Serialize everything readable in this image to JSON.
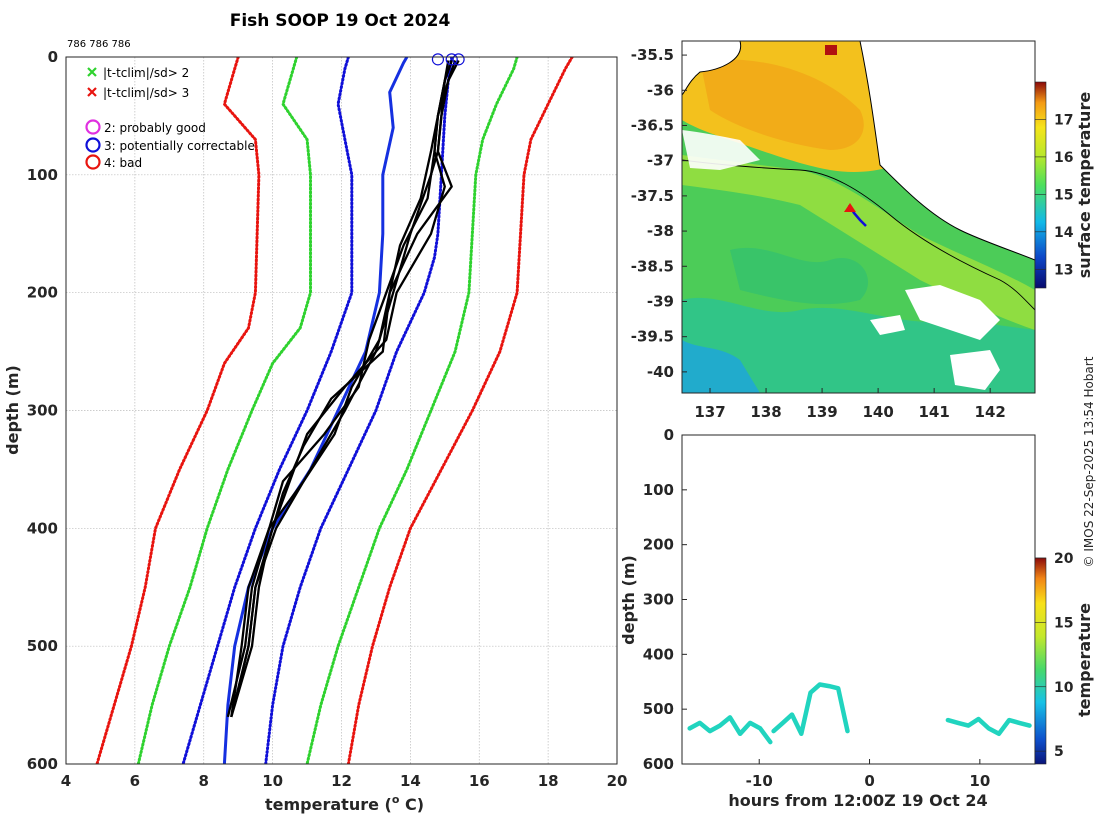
{
  "title": "Fish SOOP 19 Oct 2024",
  "cruise_ids": "786 786 786",
  "credit": "© IMOS 22-Sep-2025 13:54 Hobart",
  "legend": {
    "cross_green": "|t-tclim|/sd> 2",
    "cross_red": "|t-tclim|/sd> 3",
    "circle_magenta": "2: probably good",
    "circle_blue": "3: potentially correctable",
    "circle_red": "4: bad"
  },
  "colors": {
    "green": "#2fd22f",
    "red": "#e8140f",
    "blue": "#1010d8",
    "magenta": "#e030e0",
    "black": "#000000"
  },
  "chart_data": [
    {
      "type": "line",
      "name": "profile",
      "title": "Fish SOOP 19 Oct 2024",
      "xlabel": "temperature (o C)",
      "ylabel": "depth (m)",
      "xlim": [
        4,
        20
      ],
      "ylim": [
        0,
        600
      ],
      "y_reversed": true,
      "xticks": [
        4,
        6,
        8,
        10,
        12,
        14,
        16,
        18,
        20
      ],
      "yticks": [
        0,
        100,
        200,
        300,
        400,
        500,
        600
      ],
      "grid": true,
      "series": [
        {
          "name": "clim_minus3sd",
          "style": "red-dotted",
          "depth": [
            0,
            10,
            40,
            70,
            100,
            200,
            230,
            260,
            300,
            350,
            400,
            450,
            500,
            550,
            600
          ],
          "temp": [
            9.0,
            8.9,
            8.6,
            9.5,
            9.6,
            9.5,
            9.3,
            8.6,
            8.1,
            7.3,
            6.6,
            6.3,
            5.9,
            5.4,
            4.9
          ]
        },
        {
          "name": "clim_minus2sd",
          "style": "green-dotted",
          "depth": [
            0,
            10,
            40,
            70,
            100,
            200,
            230,
            260,
            300,
            350,
            400,
            450,
            500,
            550,
            600
          ],
          "temp": [
            10.7,
            10.6,
            10.3,
            11.0,
            11.1,
            11.1,
            10.8,
            10.0,
            9.4,
            8.7,
            8.1,
            7.6,
            7.0,
            6.5,
            6.1
          ]
        },
        {
          "name": "clim_minus1sd",
          "style": "blue-dotted",
          "depth": [
            0,
            10,
            40,
            70,
            100,
            200,
            250,
            300,
            350,
            400,
            450,
            500,
            550,
            600
          ],
          "temp": [
            12.2,
            12.1,
            11.9,
            12.1,
            12.3,
            12.3,
            11.7,
            11.0,
            10.2,
            9.5,
            8.9,
            8.4,
            7.9,
            7.4
          ]
        },
        {
          "name": "climatology_mean",
          "style": "blue-solid",
          "depth": [
            0,
            5,
            30,
            60,
            100,
            150,
            200,
            250,
            300,
            350,
            400,
            450,
            500,
            550,
            600
          ],
          "temp": [
            13.9,
            13.8,
            13.4,
            13.5,
            13.2,
            13.2,
            13.1,
            12.7,
            11.9,
            11.1,
            10.0,
            9.3,
            8.9,
            8.7,
            8.6
          ]
        },
        {
          "name": "clim_plus1sd",
          "style": "blue-dotted",
          "depth": [
            0,
            20,
            50,
            100,
            150,
            170,
            200,
            250,
            300,
            350,
            400,
            450,
            500,
            550,
            600
          ],
          "temp": [
            15.2,
            15.1,
            15.0,
            14.9,
            14.8,
            14.7,
            14.4,
            13.6,
            13.0,
            12.2,
            11.4,
            10.8,
            10.3,
            10.0,
            9.8
          ]
        },
        {
          "name": "clim_plus2sd",
          "style": "green-dotted",
          "depth": [
            0,
            10,
            40,
            70,
            100,
            200,
            250,
            300,
            350,
            400,
            450,
            500,
            550,
            600
          ],
          "temp": [
            17.1,
            17.0,
            16.5,
            16.1,
            15.9,
            15.7,
            15.3,
            14.6,
            13.9,
            13.1,
            12.5,
            11.9,
            11.4,
            11.0
          ]
        },
        {
          "name": "clim_plus3sd",
          "style": "red-dotted",
          "depth": [
            0,
            10,
            40,
            70,
            100,
            200,
            250,
            300,
            350,
            400,
            450,
            500,
            550,
            600
          ],
          "temp": [
            18.7,
            18.5,
            18.0,
            17.5,
            17.3,
            17.1,
            16.6,
            15.8,
            14.9,
            14.0,
            13.4,
            12.9,
            12.5,
            12.2
          ]
        },
        {
          "name": "xbt_1",
          "style": "black",
          "depth": [
            3,
            20,
            50,
            80,
            100,
            150,
            200,
            250,
            300,
            350,
            400,
            450,
            500,
            550
          ],
          "temp": [
            15.1,
            15.0,
            14.9,
            14.8,
            14.6,
            14.0,
            13.5,
            13.0,
            12.1,
            11.1,
            10.1,
            9.5,
            9.3,
            8.9
          ]
        },
        {
          "name": "xbt_2",
          "style": "black",
          "depth": [
            3,
            20,
            50,
            80,
            110,
            150,
            200,
            240,
            280,
            320,
            360,
            400,
            450,
            500,
            560
          ],
          "temp": [
            15.2,
            15.0,
            14.8,
            14.7,
            15.0,
            14.6,
            13.6,
            13.3,
            12.1,
            11.0,
            10.5,
            10.0,
            9.5,
            9.3,
            8.8
          ]
        },
        {
          "name": "xbt_3",
          "style": "black",
          "depth": [
            3,
            20,
            50,
            80,
            110,
            150,
            200,
            250,
            290,
            330,
            370,
            410,
            450,
            500,
            560
          ],
          "temp": [
            15.3,
            15.1,
            14.9,
            14.8,
            15.2,
            14.2,
            13.4,
            13.2,
            11.7,
            10.9,
            10.3,
            9.9,
            9.6,
            9.4,
            8.8
          ]
        },
        {
          "name": "xbt_4",
          "style": "black",
          "depth": [
            3,
            20,
            50,
            80,
            120,
            160,
            200,
            240,
            280,
            320,
            360,
            400,
            450,
            500,
            560
          ],
          "temp": [
            15.4,
            15.1,
            14.8,
            14.7,
            14.5,
            13.8,
            13.3,
            12.8,
            12.5,
            11.5,
            10.3,
            9.9,
            9.4,
            9.2,
            8.7
          ]
        },
        {
          "name": "xbt_5",
          "style": "black",
          "depth": [
            3,
            20,
            50,
            80,
            120,
            160,
            200,
            240,
            280,
            320,
            360,
            400,
            450,
            500,
            560
          ],
          "temp": [
            15.2,
            15.0,
            14.8,
            14.6,
            14.3,
            13.7,
            13.4,
            13.1,
            12.3,
            11.8,
            10.9,
            9.9,
            9.3,
            9.1,
            8.8
          ]
        }
      ],
      "flag_markers": [
        {
          "flag": "3: potentially correctable",
          "depth": 2,
          "temp": [
            14.8,
            15.2,
            15.4
          ]
        }
      ]
    },
    {
      "type": "heatmap",
      "name": "sst_map",
      "colorbar_label": "surface temperature",
      "xlim": [
        136.5,
        142.8
      ],
      "ylim": [
        -40.3,
        -35.3
      ],
      "xticks": [
        137,
        138,
        139,
        140,
        141,
        142
      ],
      "yticks": [
        -35.5,
        -36,
        -36.5,
        -37,
        -37.5,
        -38,
        -38.5,
        -39,
        -39.5,
        -40
      ],
      "clim": [
        12.5,
        18
      ],
      "colorbar_ticks": [
        13,
        14,
        15,
        16,
        17
      ],
      "regions": [
        {
          "name": "gulf_waters",
          "temp": 16.6
        },
        {
          "name": "shelf_waters",
          "temp": 15.4
        },
        {
          "name": "offshore_waters",
          "temp": 15.0
        }
      ],
      "track": {
        "lon": [
          139.5,
          139.55,
          139.6,
          139.55
        ],
        "lat": [
          -37.65,
          -37.75,
          -37.85,
          -37.9
        ]
      }
    },
    {
      "type": "scatter",
      "name": "time_depth_section",
      "xlabel": "hours from 12:00Z 19 Oct 24",
      "ylabel": "depth (m)",
      "colorbar_label": "temperature",
      "xlim": [
        -17,
        15
      ],
      "ylim": [
        0,
        600
      ],
      "y_reversed": true,
      "xticks": [
        -10,
        0,
        10
      ],
      "yticks": [
        0,
        100,
        200,
        300,
        400,
        500,
        600
      ],
      "clim": [
        4,
        20
      ],
      "colorbar_ticks": [
        5,
        10,
        15,
        20
      ],
      "casts": [
        {
          "t_start": -16.3,
          "t_end": -9.0,
          "bottom_depth": [
            535,
            525,
            540,
            530,
            515,
            545,
            525,
            535,
            560
          ]
        },
        {
          "t_start": -8.7,
          "t_end": -2.0,
          "bottom_depth": [
            540,
            525,
            510,
            545,
            470,
            455,
            458,
            462,
            540
          ]
        },
        {
          "t_start": 7.1,
          "t_end": 14.5,
          "bottom_depth": [
            520,
            525,
            530,
            518,
            535,
            545,
            520,
            525,
            530
          ]
        }
      ],
      "surface_temp": 15.2,
      "bottom_temp": 9.2
    }
  ]
}
